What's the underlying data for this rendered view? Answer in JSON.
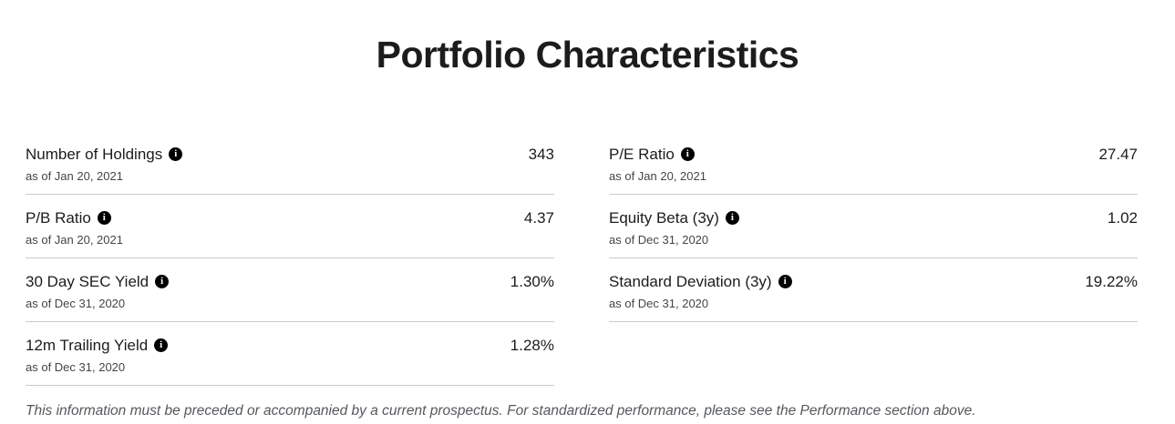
{
  "page": {
    "title": "Portfolio Characteristics",
    "footnote": "This information must be preceded or accompanied by a current prospectus. For standardized performance, please see the Performance section above."
  },
  "icons": {
    "info": "i"
  },
  "colors": {
    "text_primary": "#1c1c1c",
    "text_secondary": "#454545",
    "footnote_text": "#55585c",
    "divider": "#cbcbcb",
    "info_icon_bg": "#000000"
  },
  "metrics": {
    "left": [
      {
        "label": "Number of Holdings",
        "value": "343",
        "as_of": "as of Jan 20, 2021"
      },
      {
        "label": "P/B Ratio",
        "value": "4.37",
        "as_of": "as of Jan 20, 2021"
      },
      {
        "label": "30 Day SEC Yield",
        "value": "1.30%",
        "as_of": "as of Dec 31, 2020"
      },
      {
        "label": "12m Trailing Yield",
        "value": "1.28%",
        "as_of": "as of Dec 31, 2020"
      }
    ],
    "right": [
      {
        "label": "P/E Ratio",
        "value": "27.47",
        "as_of": "as of Jan 20, 2021"
      },
      {
        "label": "Equity Beta (3y)",
        "value": "1.02",
        "as_of": "as of Dec 31, 2020"
      },
      {
        "label": "Standard Deviation (3y)",
        "value": "19.22%",
        "as_of": "as of Dec 31, 2020"
      }
    ]
  }
}
